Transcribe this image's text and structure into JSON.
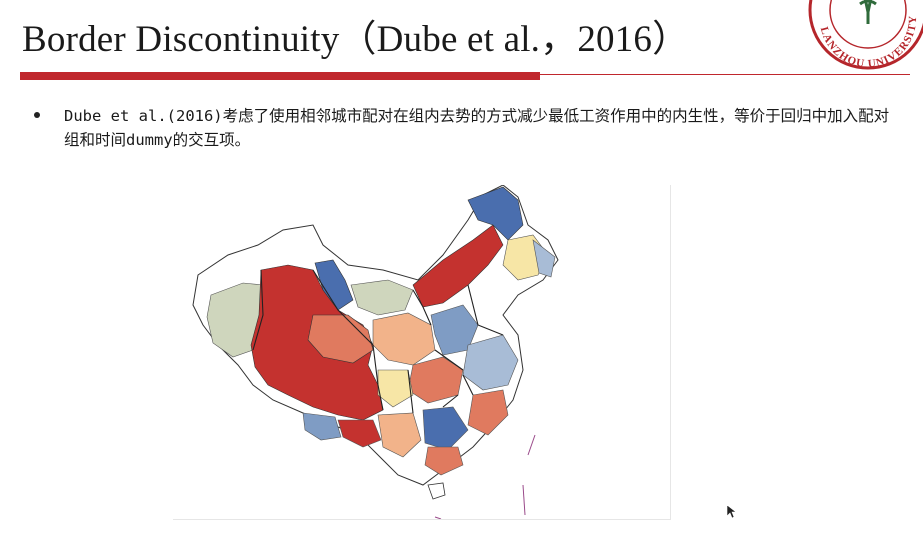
{
  "slide": {
    "title": "Border Discontinuity（Dube et al.，2016）",
    "bullet": "Dube et al.(2016)考虑了使用相邻城市配对在组内去势的方式减少最低工资作用中的内生性，等价于回归中加入配对组和时间dummy的交互项。",
    "logo_text": "LANZHOU UNIVERSITY"
  },
  "map": {
    "colors": {
      "dark_red": "#c4322f",
      "salmon": "#e07a5f",
      "peach": "#f2b38a",
      "cream": "#f7e6a6",
      "light_blue": "#a8bcd6",
      "mid_blue": "#7f9cc4",
      "dark_blue": "#4a6eae",
      "sage": "#cfd6bd",
      "white": "#ffffff"
    }
  }
}
